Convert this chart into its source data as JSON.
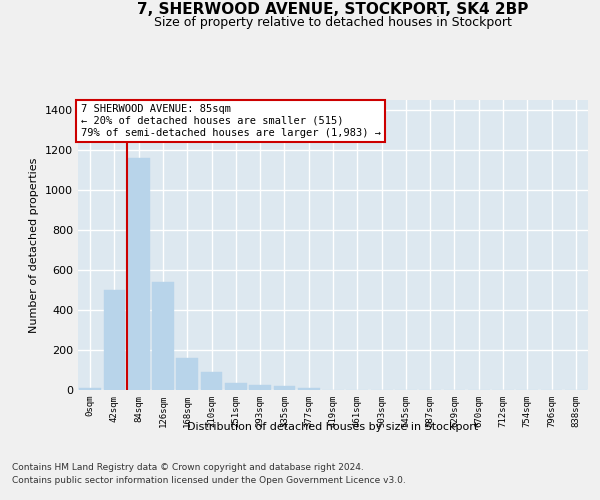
{
  "title": "7, SHERWOOD AVENUE, STOCKPORT, SK4 2BP",
  "subtitle": "Size of property relative to detached houses in Stockport",
  "xlabel": "Distribution of detached houses by size in Stockport",
  "ylabel": "Number of detached properties",
  "bar_color": "#b8d4ea",
  "bar_edge_color": "#b8d4ea",
  "highlight_line_color": "#cc0000",
  "annotation_box_color": "#cc0000",
  "background_color": "#dde8f0",
  "grid_color": "#ffffff",
  "categories": [
    "0sqm",
    "42sqm",
    "84sqm",
    "126sqm",
    "168sqm",
    "210sqm",
    "251sqm",
    "293sqm",
    "335sqm",
    "377sqm",
    "419sqm",
    "461sqm",
    "503sqm",
    "545sqm",
    "587sqm",
    "629sqm",
    "670sqm",
    "712sqm",
    "754sqm",
    "796sqm",
    "838sqm"
  ],
  "values": [
    10,
    500,
    1160,
    540,
    160,
    90,
    35,
    25,
    20,
    10,
    0,
    0,
    0,
    0,
    0,
    0,
    0,
    0,
    0,
    0,
    0
  ],
  "annotation_line1": "7 SHERWOOD AVENUE: 85sqm",
  "annotation_line2": "← 20% of detached houses are smaller (515)",
  "annotation_line3": "79% of semi-detached houses are larger (1,983) →",
  "ylim": [
    0,
    1450
  ],
  "yticks": [
    0,
    200,
    400,
    600,
    800,
    1000,
    1200,
    1400
  ],
  "footer_line1": "Contains HM Land Registry data © Crown copyright and database right 2024.",
  "footer_line2": "Contains public sector information licensed under the Open Government Licence v3.0."
}
